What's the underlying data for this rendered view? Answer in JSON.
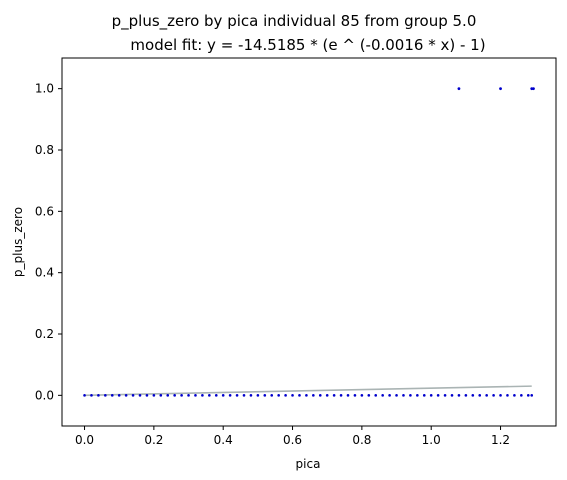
{
  "chart_data": {
    "type": "scatter",
    "title": "p_plus_zero by pica individual 85 from group 5.0",
    "subtitle": "model fit: y = -14.5185 * (e ^ (-0.0016 * x) - 1)",
    "xlabel": "pica",
    "ylabel": "p_plus_zero",
    "xlim": [
      -0.065,
      1.36
    ],
    "ylim": [
      -0.1,
      1.1
    ],
    "x_ticks": [
      "0.0",
      "0.2",
      "0.4",
      "0.6",
      "0.8",
      "1.0",
      "1.2"
    ],
    "x_tick_values": [
      0.0,
      0.2,
      0.4,
      0.6,
      0.8,
      1.0,
      1.2
    ],
    "y_ticks": [
      "0.0",
      "0.2",
      "0.4",
      "0.6",
      "0.8",
      "1.0"
    ],
    "y_tick_values": [
      0.0,
      0.2,
      0.4,
      0.6,
      0.8,
      1.0
    ],
    "grid": false,
    "point_color": "#0000cc",
    "fit_color": "#aab4b4",
    "series": [
      {
        "values_zero_x": [
          0.0,
          0.02,
          0.04,
          0.06,
          0.08,
          0.1,
          0.12,
          0.14,
          0.16,
          0.18,
          0.2,
          0.22,
          0.24,
          0.26,
          0.28,
          0.3,
          0.32,
          0.34,
          0.36,
          0.38,
          0.4,
          0.42,
          0.44,
          0.46,
          0.48,
          0.5,
          0.52,
          0.54,
          0.56,
          0.58,
          0.6,
          0.62,
          0.64,
          0.66,
          0.68,
          0.7,
          0.72,
          0.74,
          0.76,
          0.78,
          0.8,
          0.82,
          0.84,
          0.86,
          0.88,
          0.9,
          0.92,
          0.94,
          0.96,
          0.98,
          1.0,
          1.02,
          1.04,
          1.06,
          1.08,
          1.1,
          1.12,
          1.14,
          1.16,
          1.18,
          1.2,
          1.22,
          1.24,
          1.26,
          1.28,
          1.29
        ],
        "values_one_x": [
          1.08,
          1.2,
          1.29,
          1.295
        ]
      }
    ],
    "fit_line": {
      "x": [
        0.0,
        1.29
      ],
      "y": [
        0.0,
        0.03
      ]
    }
  }
}
